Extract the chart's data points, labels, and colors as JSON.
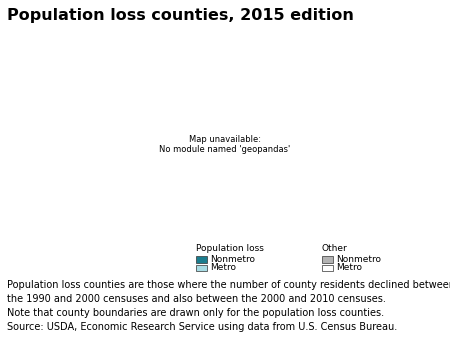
{
  "title": "Population loss counties, 2015 edition",
  "title_fontsize": 11.5,
  "colors": {
    "pop_loss_nonmetro": "#1b7d8e",
    "pop_loss_metro": "#a8dce4",
    "other_nonmetro": "#b3b3b3",
    "other_metro": "#ffffff",
    "state_edge": "#555555",
    "county_edge": "#777777",
    "background": "#ffffff"
  },
  "legend": {
    "pop_loss_label": "Population loss",
    "pop_loss_nonmetro": "Nonmetro",
    "pop_loss_metro": "Metro",
    "other_label": "Other",
    "other_nonmetro": "Nonmetro",
    "other_metro": "Metro"
  },
  "footnote_lines": [
    "Population loss counties are those where the number of county residents declined between",
    "the 1990 and 2000 censuses and also between the 2000 and 2010 censuses.",
    "Note that county boundaries are drawn only for the population loss counties.",
    "Source: USDA, Economic Research Service using data from U.S. Census Bureau."
  ],
  "footnote_fontsize": 7.0
}
